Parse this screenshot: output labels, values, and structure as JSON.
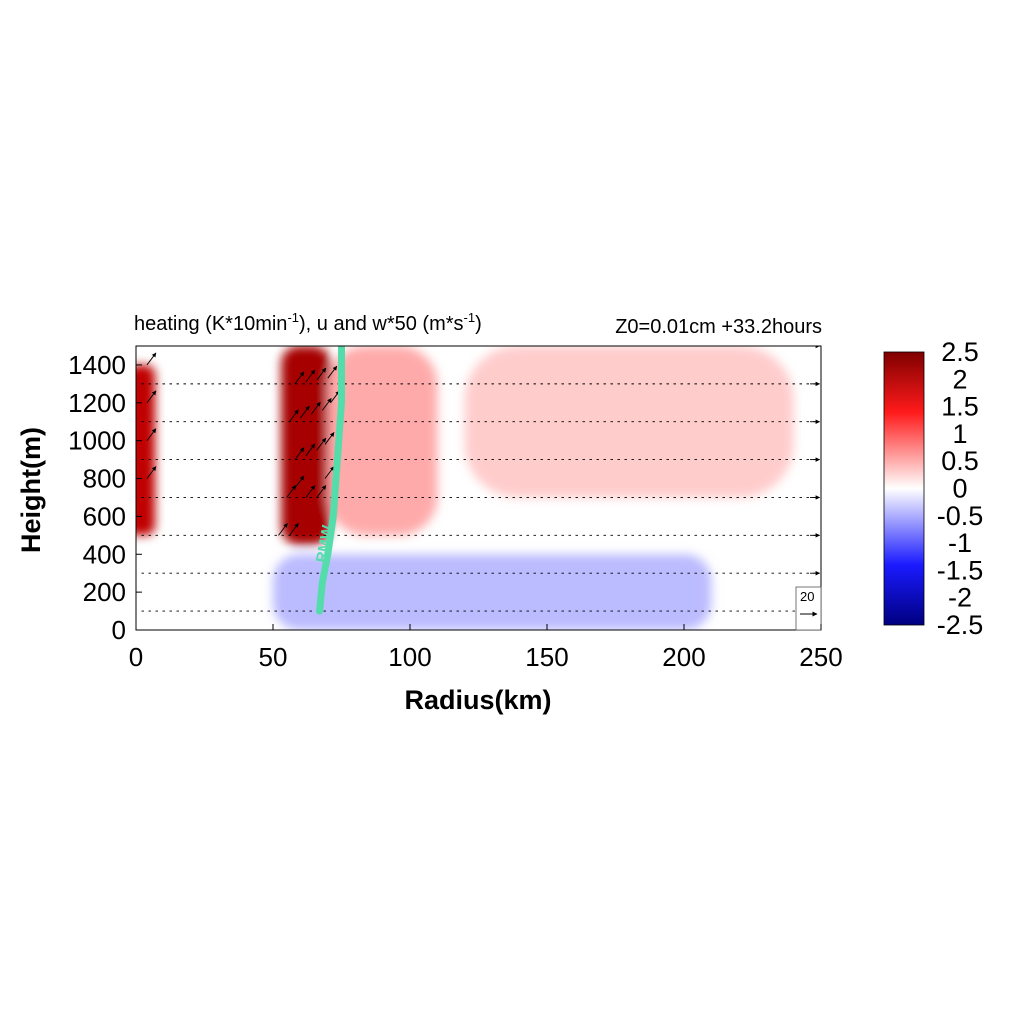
{
  "chart_data": {
    "type": "heatmap",
    "title": "heating (K*10min",
    "title_sup1": "-1",
    "title_mid": "), u and w*50 (m*s",
    "title_sup2": "-1",
    "title_end": ")",
    "subtitle": "Z0=0.01cm  +33.2hours",
    "xlabel": "Radius(km)",
    "ylabel": "Height(m)",
    "xlim": [
      0,
      250
    ],
    "ylim": [
      0,
      1500
    ],
    "x_ticks": [
      0,
      50,
      100,
      150,
      200,
      250
    ],
    "y_ticks": [
      0,
      200,
      400,
      600,
      800,
      1000,
      1200,
      1400
    ],
    "colorbar": {
      "range": [
        -2.5,
        2.5
      ],
      "tick_labels": [
        "2.5",
        "2",
        "1.5",
        "1",
        "0.5",
        "0",
        "-0.5",
        "-1",
        "-1.5",
        "-2",
        "-2.5"
      ],
      "colors": {
        "max": "#800000",
        "high": "#ff0000",
        "mid": "#ffffff",
        "low": "#0000ff",
        "min": "#000080"
      }
    },
    "heating_features": [
      {
        "r_center": 62,
        "r_width": 9,
        "z_low": 450,
        "z_high": 1500,
        "value": 2.2
      },
      {
        "r_center": 2,
        "r_width": 5,
        "z_low": 500,
        "z_high": 1400,
        "value": 2.0
      },
      {
        "r_center": 90,
        "r_width": 20,
        "z_low": 500,
        "z_high": 1500,
        "value": 0.5
      },
      {
        "r_center": 180,
        "r_width": 60,
        "z_low": 700,
        "z_high": 1500,
        "value": 0.3
      },
      {
        "r_center": 130,
        "r_width": 80,
        "z_low": 0,
        "z_high": 400,
        "value": -0.4
      }
    ],
    "vector_levels_m": [
      100,
      300,
      500,
      700,
      900,
      1100,
      1300,
      1500
    ],
    "reference_vector": {
      "label": "20"
    },
    "rmw": {
      "label": "RMW",
      "color": "#55dcab",
      "points": [
        [
          67,
          100
        ],
        [
          68,
          250
        ],
        [
          70,
          400
        ],
        [
          72,
          600
        ],
        [
          73,
          800
        ],
        [
          74,
          1000
        ],
        [
          75,
          1200
        ],
        [
          75,
          1500
        ]
      ]
    }
  }
}
